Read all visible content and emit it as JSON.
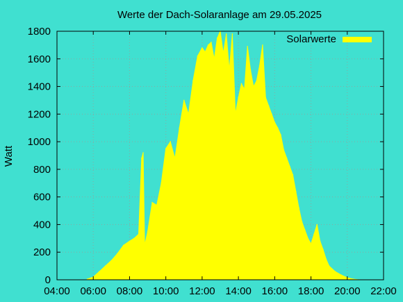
{
  "chart_data": {
    "type": "area",
    "title": "Werte der Dach-Solaranlage am 29.05.2025",
    "xlabel": "",
    "ylabel": "Watt",
    "xlim": [
      "04:00",
      "22:00"
    ],
    "ylim": [
      0,
      1800
    ],
    "x_ticks": [
      "04:00",
      "06:00",
      "08:00",
      "10:00",
      "12:00",
      "14:00",
      "16:00",
      "18:00",
      "20:00",
      "22:00"
    ],
    "y_ticks": [
      0,
      200,
      400,
      600,
      800,
      1000,
      1200,
      1400,
      1600,
      1800
    ],
    "grid": true,
    "legend_position": "top-right",
    "colors": {
      "background": "#40e0d0",
      "series": "#ffff00",
      "grid": "#8aa8a2"
    },
    "series": [
      {
        "name": "Solarwerte",
        "x": [
          "05:40",
          "06:00",
          "06:20",
          "06:40",
          "07:00",
          "07:20",
          "07:40",
          "08:00",
          "08:15",
          "08:30",
          "08:40",
          "08:45",
          "08:50",
          "09:00",
          "09:15",
          "09:30",
          "09:45",
          "10:00",
          "10:15",
          "10:30",
          "10:45",
          "11:00",
          "11:15",
          "11:30",
          "11:45",
          "12:00",
          "12:10",
          "12:20",
          "12:30",
          "12:40",
          "12:50",
          "13:00",
          "13:10",
          "13:20",
          "13:30",
          "13:40",
          "13:50",
          "14:00",
          "14:10",
          "14:20",
          "14:30",
          "14:40",
          "14:50",
          "15:00",
          "15:10",
          "15:20",
          "15:30",
          "15:40",
          "15:50",
          "16:00",
          "16:10",
          "16:20",
          "16:30",
          "16:40",
          "16:50",
          "17:00",
          "17:10",
          "17:20",
          "17:30",
          "17:40",
          "17:50",
          "18:00",
          "18:10",
          "18:20",
          "18:30",
          "18:40",
          "18:50",
          "19:00",
          "19:20",
          "19:40",
          "20:00",
          "20:20",
          "20:40"
        ],
        "values": [
          5,
          20,
          60,
          100,
          140,
          190,
          250,
          280,
          300,
          330,
          880,
          920,
          250,
          350,
          560,
          540,
          700,
          950,
          1000,
          880,
          1100,
          1300,
          1200,
          1440,
          1620,
          1680,
          1650,
          1700,
          1720,
          1600,
          1750,
          1800,
          1640,
          1780,
          1520,
          1780,
          1200,
          1320,
          1420,
          1380,
          1690,
          1520,
          1400,
          1440,
          1550,
          1700,
          1320,
          1260,
          1200,
          1140,
          1100,
          1050,
          940,
          880,
          820,
          760,
          640,
          520,
          420,
          360,
          300,
          260,
          330,
          400,
          280,
          220,
          150,
          100,
          60,
          35,
          15,
          5,
          0
        ]
      }
    ]
  }
}
